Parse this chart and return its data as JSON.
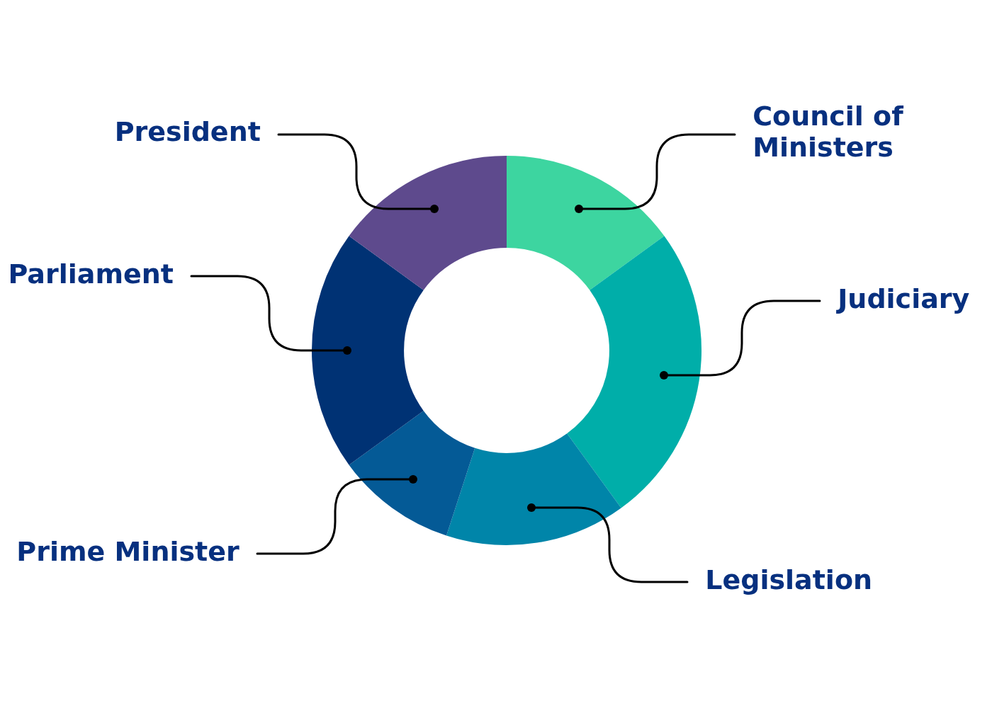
{
  "chart_data": {
    "type": "donut",
    "categories": [
      "Council of Ministers",
      "Judiciary",
      "Legislation",
      "Prime Minister",
      "Parliament",
      "President"
    ],
    "values": [
      15,
      25,
      15,
      10,
      20,
      15
    ],
    "colors": [
      "#3dd5a0",
      "#00aea9",
      "#0085a9",
      "#045a96",
      "#003274",
      "#5e4a8d"
    ]
  }
}
